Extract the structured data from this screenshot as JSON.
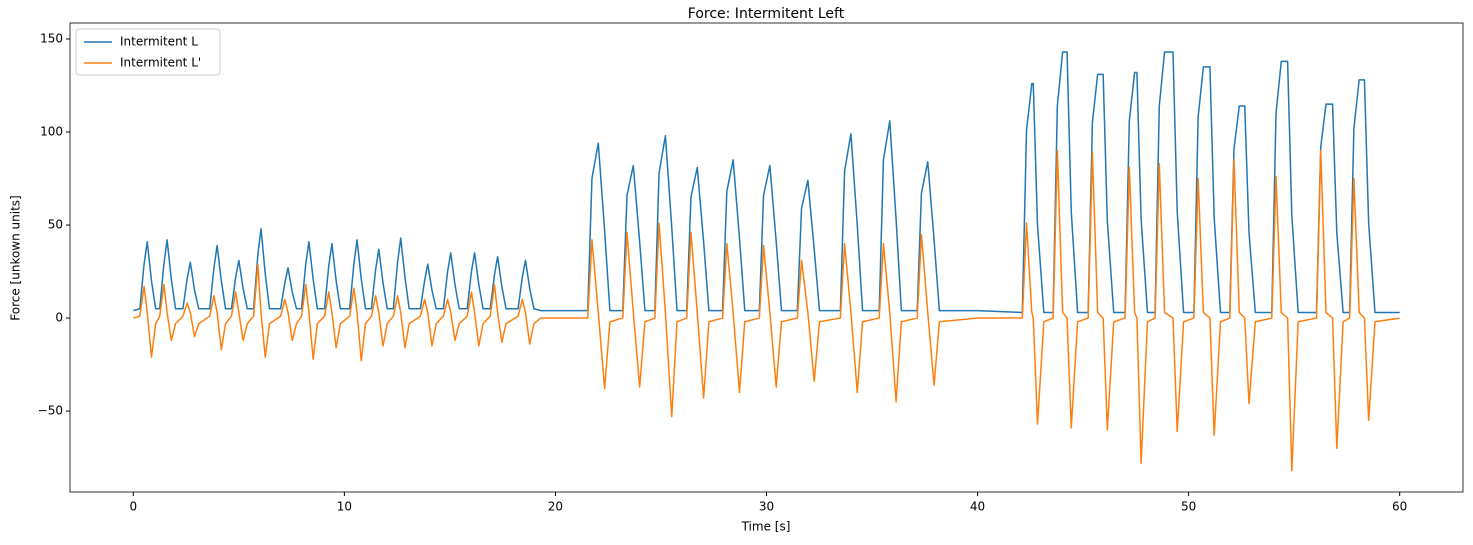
{
  "chart_data": {
    "type": "line",
    "title": "Force: Intermitent Left",
    "x_label": "Time [s]",
    "y_label": "Force [unkown units]",
    "xlim": [
      -3,
      63
    ],
    "ylim": [
      -93.5,
      158.6
    ],
    "xticks": [
      0,
      10,
      20,
      30,
      40,
      50,
      60
    ],
    "yticks": [
      {
        "value": -50,
        "label": "−50"
      },
      0,
      50,
      100,
      150
    ],
    "grid": false,
    "legend": "upper left",
    "x": [
      0,
      0.31,
      0.51,
      0.66,
      0.86,
      1.06,
      1.25,
      1.45,
      1.6,
      1.8,
      2.0,
      2.35,
      2.55,
      2.7,
      2.9,
      3.1,
      3.62,
      3.82,
      3.97,
      4.17,
      4.37,
      4.65,
      4.85,
      5.0,
      5.2,
      5.4,
      5.7,
      5.9,
      6.05,
      6.25,
      6.45,
      6.98,
      7.18,
      7.33,
      7.53,
      7.73,
      7.97,
      8.17,
      8.32,
      8.52,
      8.72,
      9.06,
      9.26,
      9.41,
      9.61,
      9.81,
      10.25,
      10.45,
      10.6,
      10.8,
      11.0,
      11.28,
      11.48,
      11.63,
      11.83,
      12.03,
      12.32,
      12.52,
      12.67,
      12.87,
      13.07,
      13.6,
      13.8,
      13.95,
      14.15,
      14.35,
      14.69,
      14.89,
      15.04,
      15.24,
      15.44,
      15.82,
      16.02,
      16.17,
      16.37,
      16.57,
      16.91,
      17.11,
      17.26,
      17.46,
      17.66,
      18.23,
      18.43,
      18.58,
      18.78,
      18.98,
      19.3,
      21.3,
      21.53,
      21.73,
      22.03,
      22.33,
      22.58,
      23.19,
      23.39,
      23.69,
      23.99,
      24.24,
      24.71,
      24.91,
      25.21,
      25.51,
      25.76,
      26.22,
      26.42,
      26.72,
      27.02,
      27.27,
      27.92,
      28.12,
      28.42,
      28.72,
      28.97,
      29.66,
      29.86,
      30.16,
      30.46,
      30.71,
      31.46,
      31.66,
      31.96,
      32.26,
      32.51,
      33.5,
      33.7,
      34.0,
      34.3,
      34.55,
      35.34,
      35.54,
      35.84,
      36.14,
      36.39,
      37.14,
      37.34,
      37.64,
      37.94,
      38.19,
      40,
      42.12,
      42.32,
      42.57,
      42.64,
      42.84,
      43.14,
      43.58,
      43.78,
      44.03,
      44.24,
      44.44,
      44.74,
      45.24,
      45.44,
      45.69,
      45.95,
      46.15,
      46.45,
      46.99,
      47.19,
      47.44,
      47.55,
      47.75,
      48.05,
      48.41,
      48.61,
      48.86,
      49.26,
      49.46,
      49.76,
      50.25,
      50.45,
      50.7,
      51.01,
      51.21,
      51.51,
      51.95,
      52.15,
      52.4,
      52.66,
      52.86,
      53.16,
      53.94,
      54.14,
      54.39,
      54.69,
      54.89,
      55.19,
      56.06,
      56.26,
      56.51,
      56.82,
      57.02,
      57.32,
      57.63,
      57.83,
      58.08,
      58.33,
      58.53,
      58.83,
      60
    ],
    "series": [
      {
        "name": "Intermitent L",
        "color": "#1f77b4",
        "values": [
          4,
          5,
          29,
          41,
          20,
          5,
          5,
          29,
          42,
          21,
          5,
          5,
          21,
          30,
          15,
          5,
          5,
          27,
          39,
          20,
          5,
          5,
          22,
          31,
          16,
          5,
          5,
          34,
          48,
          24,
          5,
          5,
          19,
          27,
          14,
          5,
          5,
          29,
          41,
          21,
          5,
          5,
          28,
          40,
          20,
          5,
          5,
          29,
          42,
          21,
          5,
          5,
          26,
          37,
          19,
          5,
          5,
          30,
          43,
          22,
          5,
          5,
          20,
          29,
          15,
          5,
          5,
          25,
          35,
          18,
          5,
          5,
          25,
          35,
          18,
          5,
          5,
          23,
          33,
          17,
          5,
          5,
          22,
          31,
          16,
          5,
          4,
          4,
          4,
          75,
          94,
          47,
          4,
          4,
          66,
          82,
          41,
          4,
          4,
          78,
          98,
          49,
          4,
          4,
          65,
          81,
          41,
          4,
          4,
          68,
          85,
          43,
          4,
          4,
          66,
          82,
          41,
          4,
          4,
          59,
          74,
          37,
          4,
          4,
          79,
          99,
          50,
          4,
          4,
          85,
          106,
          53,
          4,
          4,
          67,
          84,
          42,
          4,
          4,
          3,
          101,
          126,
          126,
          50,
          3,
          3,
          114,
          143,
          143,
          57,
          3,
          3,
          105,
          131,
          131,
          52,
          3,
          3,
          106,
          132,
          132,
          53,
          3,
          3,
          114,
          143,
          143,
          57,
          3,
          3,
          108,
          135,
          135,
          54,
          3,
          3,
          91,
          114,
          114,
          46,
          3,
          3,
          110,
          138,
          138,
          55,
          3,
          3,
          92,
          115,
          115,
          46,
          3,
          3,
          102,
          128,
          128,
          51,
          3,
          3
        ]
      },
      {
        "name": "Intermitent L'",
        "color": "#ff7f0e",
        "values": [
          0,
          1,
          17,
          3,
          -21,
          -3,
          1,
          18,
          3,
          -12,
          -3,
          1,
          8,
          3,
          -10,
          -3,
          1,
          12,
          3,
          -17,
          -3,
          1,
          14,
          3,
          -12,
          -3,
          1,
          29,
          3,
          -21,
          -3,
          1,
          10,
          3,
          -12,
          -3,
          1,
          18,
          3,
          -22,
          -3,
          1,
          14,
          3,
          -16,
          -3,
          1,
          16,
          3,
          -23,
          -3,
          1,
          12,
          3,
          -15,
          -3,
          1,
          12,
          3,
          -16,
          -3,
          1,
          10,
          3,
          -15,
          -3,
          1,
          10,
          3,
          -12,
          -3,
          1,
          14,
          3,
          -15,
          -3,
          1,
          18,
          3,
          -13,
          -3,
          1,
          10,
          3,
          -14,
          -3,
          0,
          0,
          0,
          42,
          3,
          -38,
          -2,
          0,
          46,
          3,
          -37,
          -2,
          0,
          51,
          3,
          -53,
          -2,
          0,
          46,
          3,
          -43,
          -2,
          0,
          40,
          3,
          -40,
          -2,
          0,
          39,
          3,
          -37,
          -2,
          0,
          31,
          3,
          -34,
          -2,
          0,
          40,
          3,
          -40,
          -2,
          0,
          40,
          3,
          -45,
          -2,
          0,
          45,
          3,
          -36,
          -2,
          0,
          0,
          51,
          3,
          0,
          -57,
          -2,
          0,
          90,
          3,
          0,
          -59,
          -2,
          0,
          89,
          3,
          0,
          -60,
          -2,
          0,
          81,
          3,
          0,
          -78,
          -2,
          0,
          83,
          3,
          0,
          -61,
          -2,
          0,
          75,
          3,
          0,
          -63,
          -2,
          0,
          85,
          3,
          0,
          -46,
          -2,
          0,
          76,
          3,
          0,
          -82,
          -2,
          0,
          90,
          3,
          0,
          -70,
          -2,
          0,
          75,
          3,
          0,
          -55,
          -2,
          0
        ]
      }
    ]
  }
}
